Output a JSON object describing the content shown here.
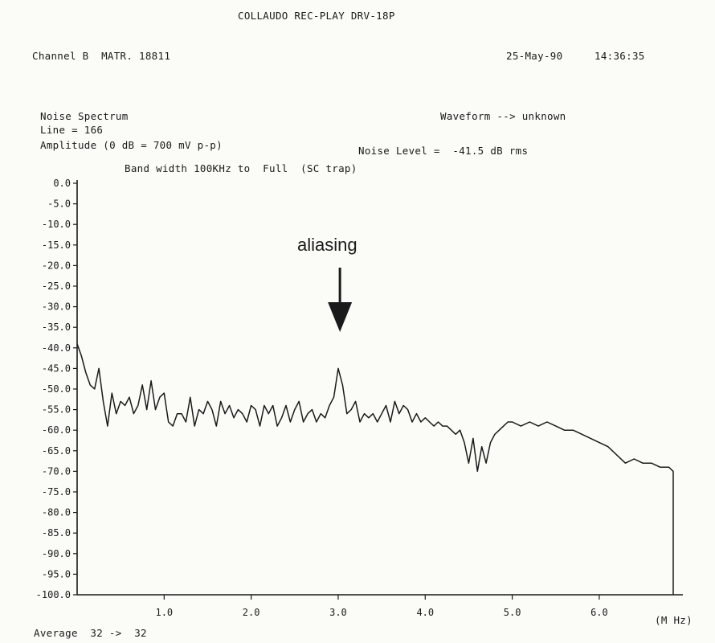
{
  "header": {
    "title": "COLLAUDO REC-PLAY DRV-18P",
    "channel": "Channel B  MATR. 18811",
    "date": "25-May-90",
    "time": "14:36:35"
  },
  "info": {
    "measurement": "Noise Spectrum",
    "line": "Line = 166",
    "amplitude": "Amplitude (0 dB = 700 mV p-p)",
    "waveform": "Waveform --> unknown",
    "noise_level": "Noise Level =  -41.5 dB rms",
    "bandwidth": "Band width 100KHz to  Full  (SC trap)"
  },
  "footer": {
    "average": "Average  32 ->  32",
    "x_unit": "(M Hz)"
  },
  "colors": {
    "trace": "#1a1a1a",
    "paper": "#fbfbf8"
  },
  "chart_data": {
    "type": "line",
    "title": "Noise Spectrum",
    "xlabel": "(M Hz)",
    "ylabel": "Amplitude (0 dB = 700 mV p-p)",
    "xlim": [
      0,
      6.85
    ],
    "ylim": [
      -100,
      0
    ],
    "x_ticks": [
      1.0,
      2.0,
      3.0,
      4.0,
      5.0,
      6.0
    ],
    "x_tick_labels": [
      "1.0",
      "2.0",
      "3.0",
      "4.0",
      "5.0",
      "6.0"
    ],
    "y_ticks": [
      0,
      -5,
      -10,
      -15,
      -20,
      -25,
      -30,
      -35,
      -40,
      -45,
      -50,
      -55,
      -60,
      -65,
      -70,
      -75,
      -80,
      -85,
      -90,
      -95,
      -100
    ],
    "y_tick_labels": [
      "0.0",
      "-5.0",
      "-10.0",
      "-15.0",
      "-20.0",
      "-25.0",
      "-30.0",
      "-35.0",
      "-40.0",
      "-45.0",
      "-50.0",
      "-55.0",
      "-60.0",
      "-65.0",
      "-70.0",
      "-75.0",
      "-80.0",
      "-85.0",
      "-90.0",
      "-95.0",
      "-100.0"
    ],
    "grid": false,
    "annotations": [
      {
        "text": "aliasing",
        "x": 3.02,
        "y": -44
      }
    ],
    "series": [
      {
        "x": [
          0.0,
          0.05,
          0.1,
          0.15,
          0.2,
          0.25,
          0.3,
          0.35,
          0.4,
          0.45,
          0.5,
          0.55,
          0.6,
          0.65,
          0.7,
          0.75,
          0.8,
          0.85,
          0.9,
          0.95,
          1.0,
          1.05,
          1.1,
          1.15,
          1.2,
          1.25,
          1.3,
          1.35,
          1.4,
          1.45,
          1.5,
          1.55,
          1.6,
          1.65,
          1.7,
          1.75,
          1.8,
          1.85,
          1.9,
          1.95,
          2.0,
          2.05,
          2.1,
          2.15,
          2.2,
          2.25,
          2.3,
          2.35,
          2.4,
          2.45,
          2.5,
          2.55,
          2.6,
          2.65,
          2.7,
          2.75,
          2.8,
          2.85,
          2.9,
          2.95,
          3.0,
          3.05,
          3.1,
          3.15,
          3.2,
          3.25,
          3.3,
          3.35,
          3.4,
          3.45,
          3.5,
          3.55,
          3.6,
          3.65,
          3.7,
          3.75,
          3.8,
          3.85,
          3.9,
          3.95,
          4.0,
          4.05,
          4.1,
          4.15,
          4.2,
          4.25,
          4.3,
          4.35,
          4.4,
          4.45,
          4.5,
          4.55,
          4.6,
          4.65,
          4.7,
          4.75,
          4.8,
          4.85,
          4.9,
          4.95,
          5.0,
          5.1,
          5.2,
          5.3,
          5.4,
          5.5,
          5.6,
          5.7,
          5.8,
          5.9,
          6.0,
          6.1,
          6.2,
          6.3,
          6.4,
          6.5,
          6.6,
          6.7,
          6.8,
          6.85
        ],
        "y": [
          -39,
          -42,
          -46,
          -49,
          -50,
          -45,
          -53,
          -59,
          -51,
          -56,
          -53,
          -54,
          -52,
          -56,
          -54,
          -49,
          -55,
          -48,
          -55,
          -52,
          -51,
          -58,
          -59,
          -56,
          -56,
          -58,
          -52,
          -59,
          -55,
          -56,
          -53,
          -55,
          -59,
          -53,
          -56,
          -54,
          -57,
          -55,
          -56,
          -58,
          -54,
          -55,
          -59,
          -54,
          -56,
          -54,
          -59,
          -57,
          -54,
          -58,
          -55,
          -53,
          -58,
          -56,
          -55,
          -58,
          -56,
          -57,
          -54,
          -52,
          -45,
          -49,
          -56,
          -55,
          -53,
          -58,
          -56,
          -57,
          -56,
          -58,
          -56,
          -54,
          -58,
          -53,
          -56,
          -54,
          -55,
          -58,
          -56,
          -58,
          -57,
          -58,
          -59,
          -58,
          -59,
          -59,
          -60,
          -61,
          -60,
          -63,
          -68,
          -62,
          -70,
          -64,
          -68,
          -63,
          -61,
          -60,
          -59,
          -58,
          -58,
          -59,
          -58,
          -59,
          -58,
          -59,
          -60,
          -60,
          -61,
          -62,
          -63,
          -64,
          -66,
          -68,
          -67,
          -68,
          -68,
          -69,
          -69,
          -70
        ]
      }
    ]
  }
}
